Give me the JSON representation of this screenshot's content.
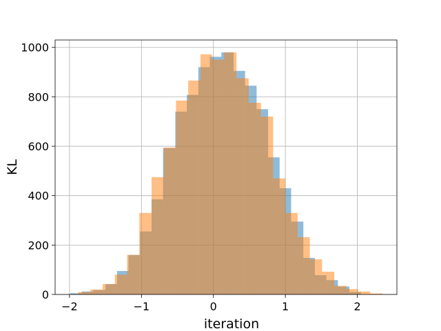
{
  "chart_data": {
    "type": "histogram",
    "title": "",
    "xlabel": "iteration",
    "ylabel": "KL",
    "xlim": [
      -2.2,
      2.55
    ],
    "ylim": [
      0,
      1030
    ],
    "grid": true,
    "legend": "none",
    "x_ticks": [
      -2,
      -1,
      0,
      1,
      2
    ],
    "y_ticks": [
      0,
      200,
      400,
      600,
      800,
      1000
    ],
    "series": [
      {
        "color": "#1f77b4",
        "opacity": 0.5,
        "bin_edges": [
          -1.99,
          -1.83,
          -1.67,
          -1.5,
          -1.34,
          -1.18,
          -1.02,
          -0.86,
          -0.7,
          -0.53,
          -0.37,
          -0.21,
          -0.05,
          0.11,
          0.28,
          0.44,
          0.6,
          0.76,
          0.92,
          1.08,
          1.25,
          1.41,
          1.57,
          1.73,
          1.89,
          2.05
        ],
        "counts": [
          5,
          12,
          18,
          42,
          95,
          160,
          255,
          385,
          592,
          740,
          808,
          920,
          962,
          980,
          905,
          845,
          750,
          555,
          430,
          295,
          148,
          78,
          58,
          32,
          10
        ]
      },
      {
        "color": "#ff7f0e",
        "opacity": 0.5,
        "bin_edges": [
          -1.88,
          -1.71,
          -1.54,
          -1.37,
          -1.2,
          -1.03,
          -0.86,
          -0.69,
          -0.52,
          -0.35,
          -0.18,
          -0.02,
          0.15,
          0.32,
          0.49,
          0.66,
          0.83,
          1.0,
          1.17,
          1.34,
          1.51,
          1.68,
          1.85,
          2.01,
          2.18,
          2.35
        ],
        "counts": [
          10,
          20,
          42,
          80,
          160,
          330,
          475,
          595,
          785,
          866,
          972,
          950,
          980,
          875,
          776,
          720,
          470,
          330,
          232,
          142,
          92,
          35,
          22,
          12,
          4
        ]
      }
    ]
  }
}
